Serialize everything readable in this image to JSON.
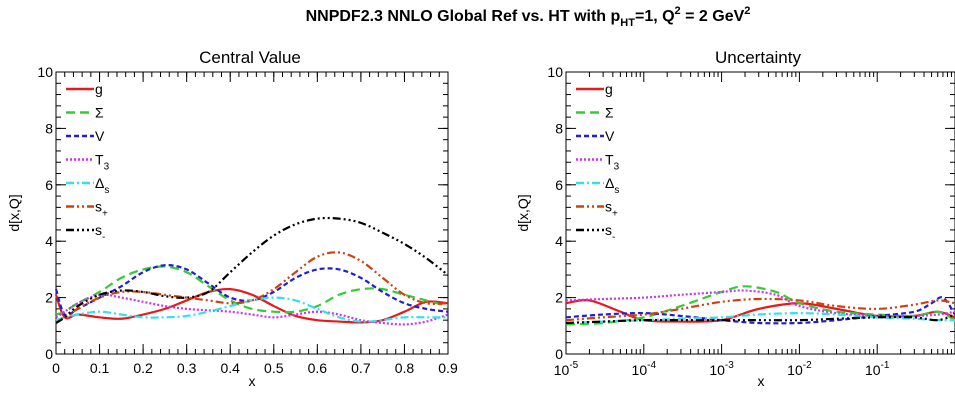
{
  "figure": {
    "title_prefix": "NNPDF2.3 NNLO Global Ref vs. HT with p",
    "title_sub": "HT",
    "title_mid": "=1, Q",
    "title_sup1": "2",
    "title_mid2": " = 2 GeV",
    "title_sup2": "2"
  },
  "series_styles": [
    {
      "color": "#e41a1c",
      "dash": "",
      "legend_main": "g",
      "legend_sub": ""
    },
    {
      "color": "#33cc33",
      "dash": "9,5",
      "legend_main": "Σ",
      "legend_sub": ""
    },
    {
      "color": "#1f1fd1",
      "dash": "5,3",
      "legend_main": "V",
      "legend_sub": ""
    },
    {
      "color": "#cc33ee",
      "dash": "2,2",
      "legend_main": "T",
      "legend_sub": "3"
    },
    {
      "color": "#33e0ee",
      "dash": "8,3,2,3",
      "legend_main": "Δ",
      "legend_sub": "s"
    },
    {
      "color": "#d04010",
      "dash": "8,3,2,3,2,3",
      "legend_main": "s",
      "legend_sub": "+"
    },
    {
      "color": "#000000",
      "dash": "8,3,2,3,2,3,2,3",
      "legend_main": "s",
      "legend_sub": "-"
    }
  ],
  "chart_data": [
    {
      "type": "line",
      "title": "Central Value",
      "xlabel": "x",
      "ylabel": "d[x,Q]",
      "xscale": "linear",
      "xlim": [
        0,
        0.9
      ],
      "ylim": [
        0,
        10
      ],
      "xticks": [
        0,
        0.1,
        0.2,
        0.3,
        0.4,
        0.5,
        0.6,
        0.7,
        0.8,
        0.9
      ],
      "xtick_labels": [
        "0",
        "0.1",
        "0.2",
        "0.3",
        "0.4",
        "0.5",
        "0.6",
        "0.7",
        "0.8",
        "0.9"
      ],
      "yticks": [
        0,
        2,
        4,
        6,
        8,
        10
      ],
      "ytick_labels": [
        "0",
        "2",
        "4",
        "6",
        "8",
        "10"
      ],
      "legend": "top-left",
      "series": [
        {
          "name": "g",
          "x": [
            0,
            0.02,
            0.05,
            0.1,
            0.15,
            0.2,
            0.25,
            0.3,
            0.35,
            0.4,
            0.45,
            0.5,
            0.55,
            0.6,
            0.65,
            0.7,
            0.75,
            0.8,
            0.85,
            0.9
          ],
          "y": [
            2.1,
            1.3,
            1.4,
            1.3,
            1.25,
            1.4,
            1.6,
            1.9,
            2.2,
            2.3,
            2.1,
            1.7,
            1.35,
            1.2,
            1.15,
            1.12,
            1.2,
            1.5,
            1.85,
            1.8
          ]
        },
        {
          "name": "Σ",
          "x": [
            0,
            0.02,
            0.05,
            0.1,
            0.15,
            0.2,
            0.25,
            0.3,
            0.35,
            0.4,
            0.45,
            0.5,
            0.55,
            0.6,
            0.65,
            0.7,
            0.75,
            0.8,
            0.85,
            0.9
          ],
          "y": [
            1.4,
            1.5,
            1.8,
            2.2,
            2.7,
            3.0,
            3.1,
            2.9,
            2.4,
            1.9,
            1.6,
            1.5,
            1.5,
            1.7,
            2.1,
            2.3,
            2.3,
            2.1,
            1.9,
            1.7
          ]
        },
        {
          "name": "V",
          "x": [
            0,
            0.02,
            0.05,
            0.1,
            0.15,
            0.2,
            0.25,
            0.3,
            0.35,
            0.4,
            0.45,
            0.5,
            0.55,
            0.6,
            0.65,
            0.7,
            0.75,
            0.8,
            0.85,
            0.9
          ],
          "y": [
            2.3,
            1.4,
            1.6,
            2.0,
            2.4,
            2.9,
            3.15,
            3.0,
            2.5,
            2.0,
            1.9,
            2.2,
            2.7,
            3.0,
            3.0,
            2.7,
            2.2,
            1.8,
            1.6,
            1.5
          ]
        },
        {
          "name": "T3",
          "x": [
            0,
            0.02,
            0.05,
            0.1,
            0.15,
            0.2,
            0.25,
            0.3,
            0.35,
            0.4,
            0.45,
            0.5,
            0.55,
            0.6,
            0.65,
            0.7,
            0.75,
            0.8,
            0.85,
            0.9
          ],
          "y": [
            1.3,
            1.5,
            1.8,
            2.1,
            2.0,
            1.85,
            1.7,
            1.6,
            1.55,
            1.5,
            1.4,
            1.3,
            1.4,
            1.5,
            1.4,
            1.2,
            1.1,
            1.05,
            1.15,
            1.4
          ]
        },
        {
          "name": "Δs",
          "x": [
            0,
            0.02,
            0.05,
            0.1,
            0.15,
            0.2,
            0.25,
            0.3,
            0.35,
            0.4,
            0.45,
            0.5,
            0.55,
            0.6,
            0.65,
            0.7,
            0.75,
            0.8,
            0.85,
            0.9
          ],
          "y": [
            1.2,
            1.3,
            1.4,
            1.5,
            1.4,
            1.3,
            1.3,
            1.35,
            1.5,
            1.7,
            1.9,
            2.0,
            1.9,
            1.6,
            1.3,
            1.15,
            1.2,
            1.3,
            1.3,
            1.3
          ]
        },
        {
          "name": "s+",
          "x": [
            0,
            0.02,
            0.05,
            0.1,
            0.15,
            0.2,
            0.25,
            0.3,
            0.35,
            0.4,
            0.45,
            0.5,
            0.55,
            0.6,
            0.65,
            0.7,
            0.75,
            0.8,
            0.85,
            0.9
          ],
          "y": [
            1.1,
            1.3,
            1.6,
            2.0,
            2.2,
            2.2,
            2.1,
            2.0,
            1.9,
            1.8,
            1.9,
            2.3,
            2.9,
            3.45,
            3.6,
            3.3,
            2.7,
            2.1,
            1.8,
            1.8
          ]
        },
        {
          "name": "s-",
          "x": [
            0,
            0.02,
            0.05,
            0.1,
            0.15,
            0.2,
            0.25,
            0.3,
            0.35,
            0.4,
            0.45,
            0.5,
            0.55,
            0.6,
            0.65,
            0.7,
            0.75,
            0.8,
            0.85,
            0.9
          ],
          "y": [
            1.1,
            1.3,
            1.7,
            2.1,
            2.25,
            2.2,
            2.05,
            2.0,
            2.2,
            2.9,
            3.6,
            4.2,
            4.6,
            4.8,
            4.8,
            4.65,
            4.3,
            3.9,
            3.4,
            2.8
          ]
        }
      ]
    },
    {
      "type": "line",
      "title": "Uncertainty",
      "xlabel": "x",
      "ylabel": "d[x,Q]",
      "xscale": "log",
      "xlim": [
        1e-05,
        1
      ],
      "ylim": [
        0,
        10
      ],
      "xticks": [
        1e-05,
        0.0001,
        0.001,
        0.01,
        0.1
      ],
      "xtick_labels": [
        {
          "base": "10",
          "exp": "-5"
        },
        {
          "base": "10",
          "exp": "-4"
        },
        {
          "base": "10",
          "exp": "-3"
        },
        {
          "base": "10",
          "exp": "-2"
        },
        {
          "base": "10",
          "exp": "-1"
        }
      ],
      "yticks": [
        0,
        2,
        4,
        6,
        8,
        10
      ],
      "ytick_labels": [
        "0",
        "2",
        "4",
        "6",
        "8",
        "10"
      ],
      "legend": "top-left",
      "series": [
        {
          "name": "g",
          "x": [
            1e-05,
            2e-05,
            5e-05,
            0.0001,
            0.0003,
            0.001,
            0.003,
            0.01,
            0.03,
            0.1,
            0.3,
            0.6,
            1
          ],
          "y": [
            1.8,
            1.9,
            1.5,
            1.2,
            1.15,
            1.2,
            1.6,
            1.8,
            1.6,
            1.35,
            1.35,
            1.5,
            1.3
          ]
        },
        {
          "name": "Σ",
          "x": [
            1e-05,
            3e-05,
            0.0001,
            0.0003,
            0.001,
            0.002,
            0.005,
            0.01,
            0.03,
            0.1,
            0.3,
            0.6,
            1
          ],
          "y": [
            1.05,
            1.1,
            1.3,
            1.7,
            2.2,
            2.4,
            2.2,
            1.8,
            1.5,
            1.4,
            1.35,
            1.5,
            1.2
          ]
        },
        {
          "name": "V",
          "x": [
            1e-05,
            3e-05,
            0.0001,
            0.0003,
            0.001,
            0.003,
            0.01,
            0.03,
            0.1,
            0.3,
            0.5,
            0.7,
            1
          ],
          "y": [
            1.3,
            1.4,
            1.45,
            1.35,
            1.2,
            1.1,
            1.1,
            1.2,
            1.35,
            1.5,
            1.8,
            2.0,
            1.4
          ]
        },
        {
          "name": "T3",
          "x": [
            1e-05,
            3e-05,
            0.0001,
            0.0003,
            0.001,
            0.002,
            0.005,
            0.01,
            0.03,
            0.1,
            0.3,
            0.6,
            1
          ],
          "y": [
            1.9,
            1.95,
            2.0,
            2.1,
            2.2,
            2.25,
            2.1,
            1.7,
            1.45,
            1.35,
            1.35,
            1.4,
            1.5
          ]
        },
        {
          "name": "Δs",
          "x": [
            1e-05,
            3e-05,
            0.0001,
            0.0003,
            0.001,
            0.003,
            0.01,
            0.03,
            0.1,
            0.3,
            0.6,
            1
          ],
          "y": [
            1.1,
            1.15,
            1.2,
            1.25,
            1.3,
            1.4,
            1.45,
            1.4,
            1.3,
            1.25,
            1.2,
            1.2
          ]
        },
        {
          "name": "s+",
          "x": [
            1e-05,
            3e-05,
            0.0001,
            0.0003,
            0.001,
            0.003,
            0.01,
            0.03,
            0.1,
            0.3,
            0.6,
            1
          ],
          "y": [
            1.2,
            1.3,
            1.4,
            1.6,
            1.85,
            1.95,
            1.9,
            1.7,
            1.6,
            1.75,
            1.9,
            1.8
          ]
        },
        {
          "name": "s-",
          "x": [
            1e-05,
            3e-05,
            0.0001,
            0.0003,
            0.001,
            0.003,
            0.01,
            0.03,
            0.1,
            0.3,
            0.6,
            1
          ],
          "y": [
            1.1,
            1.15,
            1.2,
            1.2,
            1.2,
            1.2,
            1.2,
            1.25,
            1.3,
            1.3,
            1.2,
            1.4
          ]
        }
      ]
    }
  ]
}
